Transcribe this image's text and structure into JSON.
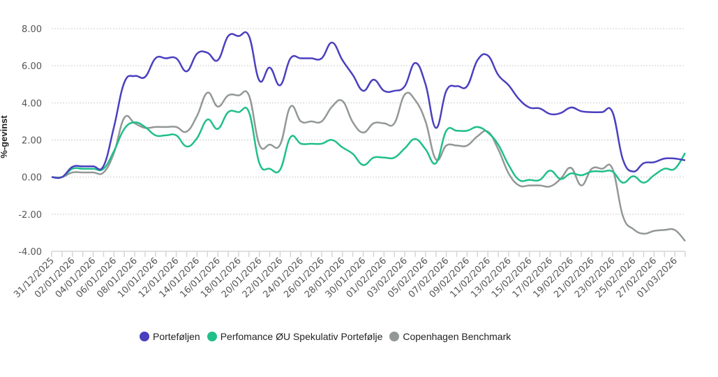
{
  "chart_data": {
    "type": "line",
    "title": "",
    "xlabel": "",
    "ylabel": "%-gevinst",
    "ylim": [
      -4,
      8
    ],
    "yticks": [
      "8.00",
      "6.00",
      "4.00",
      "2.00",
      "0.00",
      "-2.00",
      "-4.00"
    ],
    "ytick_values": [
      8,
      6,
      4,
      2,
      0,
      -2,
      -4
    ],
    "grid": true,
    "legend_position": "bottom",
    "x": [
      "31/12/2025",
      "01/01/2026",
      "02/01/2026",
      "03/01/2026",
      "04/01/2026",
      "05/01/2026",
      "06/01/2026",
      "07/01/2026",
      "08/01/2026",
      "09/01/2026",
      "10/01/2026",
      "11/01/2026",
      "12/01/2026",
      "13/01/2026",
      "14/01/2026",
      "15/01/2026",
      "16/01/2026",
      "17/01/2026",
      "18/01/2026",
      "19/01/2026",
      "20/01/2026",
      "21/01/2026",
      "22/01/2026",
      "23/01/2026",
      "24/01/2026",
      "25/01/2026",
      "26/01/2026",
      "27/01/2026",
      "28/01/2026",
      "29/01/2026",
      "30/01/2026",
      "31/01/2026",
      "01/02/2026",
      "02/02/2026",
      "03/02/2026",
      "04/02/2026",
      "05/02/2026",
      "06/02/2026",
      "07/02/2026",
      "08/02/2026",
      "09/02/2026",
      "10/02/2026",
      "11/02/2026",
      "12/02/2026",
      "13/02/2026",
      "14/02/2026",
      "15/02/2026",
      "16/02/2026",
      "17/02/2026",
      "18/02/2026",
      "19/02/2026",
      "20/02/2026",
      "21/02/2026",
      "22/02/2026",
      "23/02/2026",
      "24/02/2026",
      "25/02/2026",
      "26/02/2026",
      "27/02/2026",
      "28/02/2026",
      "01/03/2026",
      "02/03/2026"
    ],
    "xtick_labels": [
      "31/12/2025",
      "02/01/2026",
      "04/01/2026",
      "06/01/2026",
      "08/01/2026",
      "10/01/2026",
      "12/01/2026",
      "14/01/2026",
      "16/01/2026",
      "18/01/2026",
      "20/01/2026",
      "22/01/2026",
      "24/01/2026",
      "26/01/2026",
      "28/01/2026",
      "30/01/2026",
      "01/02/2026",
      "03/02/2026",
      "05/02/2026",
      "07/02/2026",
      "09/02/2026",
      "11/02/2026",
      "13/02/2026",
      "15/02/2026",
      "17/02/2026",
      "19/02/2026",
      "21/02/2026",
      "23/02/2026",
      "25/02/2026",
      "27/02/2026",
      "01/03/2026"
    ],
    "series": [
      {
        "name": "Porteføljen",
        "color": "#4a3fbf",
        "values": [
          0,
          0,
          0.55,
          0.58,
          0.58,
          0.6,
          2.7,
          5.1,
          5.45,
          5.4,
          6.4,
          6.4,
          6.4,
          5.7,
          6.65,
          6.7,
          6.3,
          7.6,
          7.6,
          7.6,
          5.2,
          5.9,
          4.95,
          6.4,
          6.4,
          6.4,
          6.4,
          7.25,
          6.3,
          5.5,
          4.65,
          5.25,
          4.65,
          4.65,
          4.9,
          6.15,
          5.0,
          2.65,
          4.65,
          4.9,
          4.9,
          6.3,
          6.55,
          5.5,
          4.95,
          4.2,
          3.75,
          3.7,
          3.4,
          3.45,
          3.75,
          3.55,
          3.5,
          3.5,
          3.5,
          0.95,
          0.3,
          0.75,
          0.8,
          1.0,
          1.0,
          0.9
        ]
      },
      {
        "name": "Perfomance ØU Spekulativ Portefølje",
        "color": "#1fbf8a",
        "values": [
          0,
          0,
          0.45,
          0.45,
          0.45,
          0.45,
          1.4,
          2.6,
          2.95,
          2.7,
          2.25,
          2.25,
          2.25,
          1.65,
          2.1,
          3.1,
          2.6,
          3.5,
          3.5,
          3.5,
          0.75,
          0.45,
          0.4,
          2.15,
          1.8,
          1.8,
          1.8,
          2.0,
          1.6,
          1.25,
          0.65,
          1.05,
          1.05,
          1.05,
          1.55,
          2.05,
          1.5,
          0.75,
          2.5,
          2.5,
          2.5,
          2.7,
          2.4,
          1.75,
          0.65,
          -0.15,
          -0.15,
          -0.15,
          0.35,
          -0.1,
          0.2,
          0.1,
          0.3,
          0.3,
          0.3,
          -0.3,
          0.05,
          -0.3,
          0.1,
          0.45,
          0.45,
          1.3
        ]
      },
      {
        "name": "Copenhagen Benchmark",
        "color": "#929896",
        "values": [
          0,
          0,
          0.25,
          0.25,
          0.25,
          0.25,
          1.3,
          3.2,
          2.9,
          2.65,
          2.7,
          2.7,
          2.7,
          2.45,
          3.3,
          4.55,
          3.8,
          4.4,
          4.4,
          4.4,
          1.75,
          1.75,
          1.75,
          3.8,
          3.0,
          3.0,
          3.0,
          3.8,
          4.1,
          2.95,
          2.4,
          2.9,
          2.9,
          2.9,
          4.45,
          4.15,
          3.0,
          0.95,
          1.7,
          1.7,
          1.7,
          2.2,
          2.45,
          1.5,
          0.2,
          -0.45,
          -0.45,
          -0.45,
          -0.5,
          -0.1,
          0.5,
          -0.45,
          0.45,
          0.45,
          0.45,
          -2.1,
          -2.8,
          -3.05,
          -2.9,
          -2.85,
          -2.85,
          -3.45
        ]
      }
    ]
  }
}
